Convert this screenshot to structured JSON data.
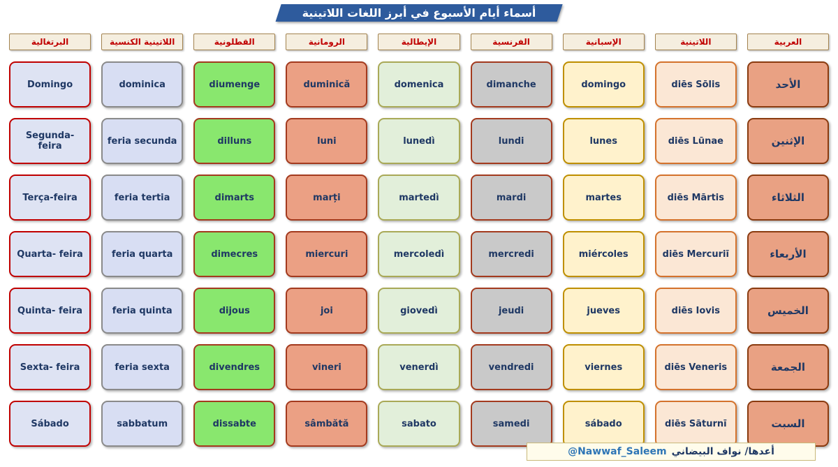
{
  "title": "أسماء أيام الأسبوع في أبرز اللغات اللاتينية",
  "title_bar_color": "#2E5B9D",
  "header_style": {
    "fill": "#F5EEDF",
    "border": "#A3834F",
    "text": "#C00000"
  },
  "footer": {
    "credit_ar": "أعدها/ نواف البيضاني",
    "handle": "@Nawwaf_Saleem"
  },
  "columns": [
    {
      "id": "portuguese",
      "header": "البرتغالية",
      "colors": {
        "fill": "#DEE3F3",
        "border": "#C00000",
        "text": "#1F3864"
      },
      "days": [
        "Domingo",
        "Segunda- feira",
        "Terça-feira",
        "Quarta- feira",
        "Quinta- feira",
        "Sexta- feira",
        "Sábado"
      ]
    },
    {
      "id": "church-latin",
      "header": "اللاتينية الكنسية",
      "colors": {
        "fill": "#D8DEF3",
        "border": "#8A8A8A",
        "text": "#1F3864"
      },
      "days": [
        "dominica",
        "feria secunda",
        "feria tertia",
        "feria quarta",
        "feria quinta",
        "feria sexta",
        "sabbatum"
      ]
    },
    {
      "id": "catalan",
      "header": "القطلونية",
      "colors": {
        "fill": "#89E76E",
        "border": "#A33A1E",
        "text": "#1F3864"
      },
      "days": [
        "diumenge",
        "dilluns",
        "dimarts",
        "dimecres",
        "dijous",
        "divendres",
        "dissabte"
      ]
    },
    {
      "id": "romanian",
      "header": "الرومانية",
      "colors": {
        "fill": "#EBA084",
        "border": "#A33A1E",
        "text": "#1F3864"
      },
      "days": [
        "duminică",
        "luni",
        "marți",
        "miercuri",
        "joi",
        "vineri",
        "sâmbătă"
      ]
    },
    {
      "id": "italian",
      "header": "الإيطالية",
      "colors": {
        "fill": "#E2EFDA",
        "border": "#A9A957",
        "text": "#1F3864"
      },
      "days": [
        "domenica",
        "lunedì",
        "martedì",
        "mercoledì",
        "giovedì",
        "venerdì",
        "sabato"
      ]
    },
    {
      "id": "french",
      "header": "الفرنسية",
      "colors": {
        "fill": "#C9C9C9",
        "border": "#A33A1E",
        "text": "#1F3864"
      },
      "days": [
        "dimanche",
        "lundi",
        "mardi",
        "mercredi",
        "jeudi",
        "vendredi",
        "samedi"
      ]
    },
    {
      "id": "spanish",
      "header": "الإسبانية",
      "colors": {
        "fill": "#FFF2CC",
        "border": "#BF8F00",
        "text": "#1F3864"
      },
      "days": [
        "domingo",
        "lunes",
        "martes",
        "miércoles",
        "jueves",
        "viernes",
        "sábado"
      ]
    },
    {
      "id": "latin",
      "header": "اللاتينية",
      "colors": {
        "fill": "#FBE7D5",
        "border": "#D4722C",
        "text": "#1F3864"
      },
      "days": [
        "diēs Sōlis",
        "diēs Lūnae",
        "diēs Mārtis",
        "diēs Mercuriī",
        "diēs Iovis",
        "diēs Veneris",
        "diēs Sāturnī"
      ]
    },
    {
      "id": "arabic",
      "header": "العربية",
      "colors": {
        "fill": "#E9A183",
        "border": "#8A3B10",
        "text": "#1F3864"
      },
      "days": [
        "الأحد",
        "الإثنين",
        "الثلاثاء",
        "الأربعاء",
        "الخميس",
        "الجمعة",
        "السبت"
      ]
    }
  ]
}
